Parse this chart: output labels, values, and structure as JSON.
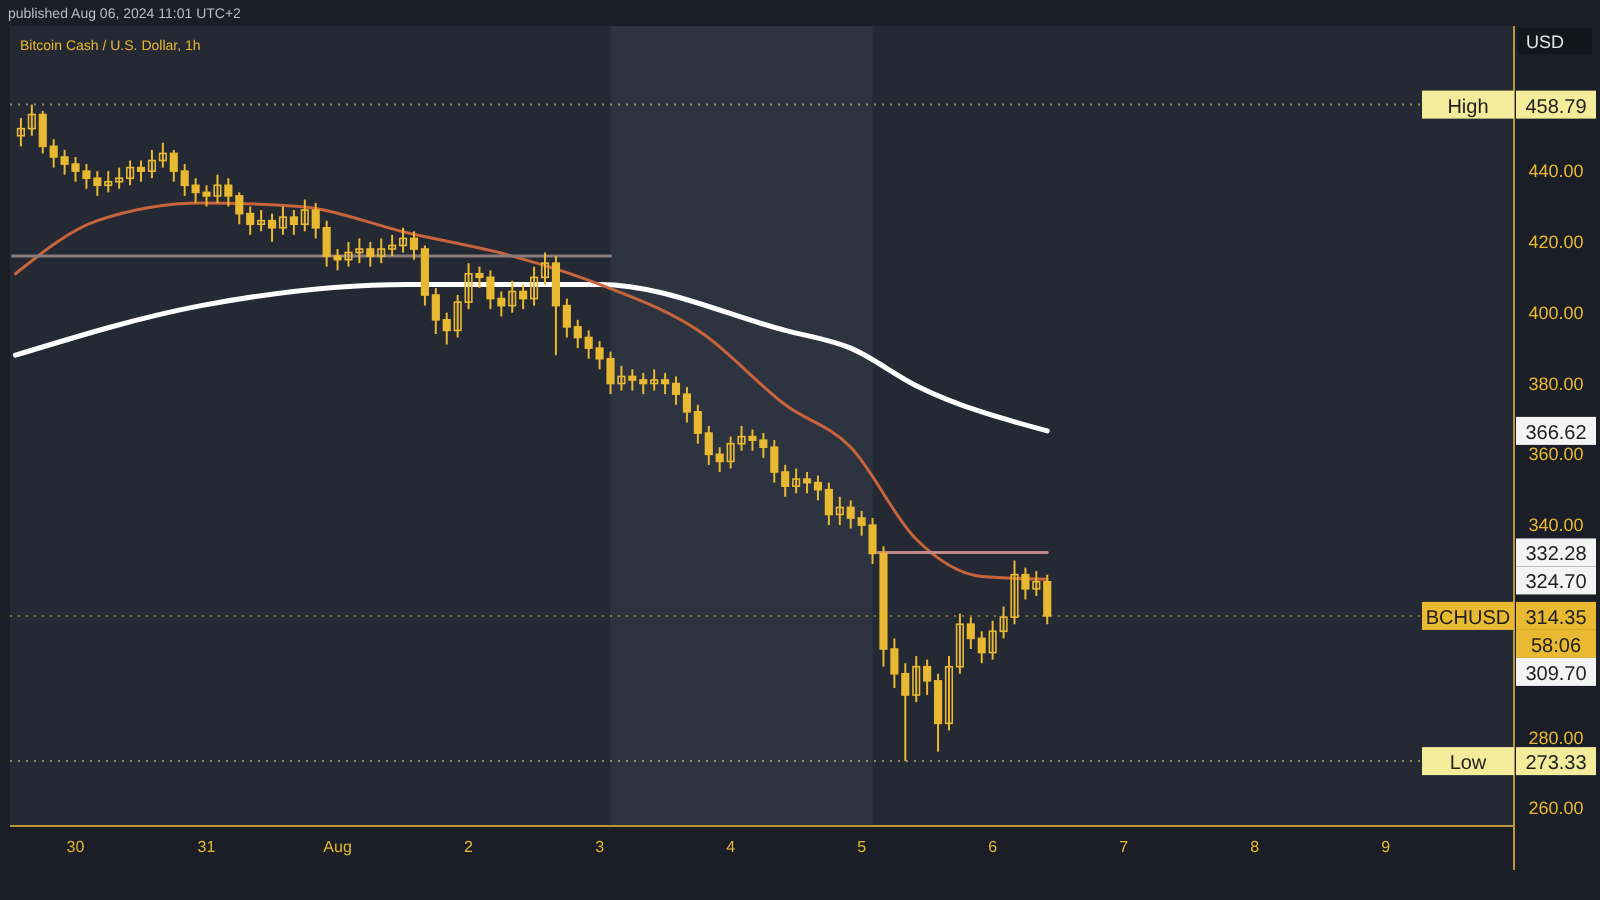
{
  "chart_data": {
    "type": "candlestick",
    "title": "Bitcoin Cash / U.S. Dollar, 1h",
    "subtitle": "published Aug 06, 2024 11:01 UTC+2",
    "ylabel": "USD",
    "color": "#e8b931",
    "x": [
      "2024-07-29T14:00",
      "2024-07-29T16:00",
      "2024-07-29T18:00",
      "2024-07-29T20:00",
      "2024-07-29T22:00",
      "2024-07-30T00:00",
      "2024-07-30T02:00",
      "2024-07-30T04:00",
      "2024-07-30T06:00",
      "2024-07-30T08:00",
      "2024-07-30T10:00",
      "2024-07-30T12:00",
      "2024-07-30T14:00",
      "2024-07-30T16:00",
      "2024-07-30T18:00",
      "2024-07-30T20:00",
      "2024-07-30T22:00",
      "2024-07-31T00:00",
      "2024-07-31T02:00",
      "2024-07-31T04:00",
      "2024-07-31T06:00",
      "2024-07-31T08:00",
      "2024-07-31T10:00",
      "2024-07-31T12:00",
      "2024-07-31T14:00",
      "2024-07-31T16:00",
      "2024-07-31T18:00",
      "2024-07-31T20:00",
      "2024-07-31T22:00",
      "2024-08-01T00:00",
      "2024-08-01T02:00",
      "2024-08-01T04:00",
      "2024-08-01T06:00",
      "2024-08-01T08:00",
      "2024-08-01T10:00",
      "2024-08-01T12:00",
      "2024-08-01T14:00",
      "2024-08-01T16:00",
      "2024-08-01T18:00",
      "2024-08-01T20:00",
      "2024-08-01T22:00",
      "2024-08-02T00:00",
      "2024-08-02T02:00",
      "2024-08-02T04:00",
      "2024-08-02T06:00",
      "2024-08-02T08:00",
      "2024-08-02T10:00",
      "2024-08-02T12:00",
      "2024-08-02T14:00",
      "2024-08-02T16:00",
      "2024-08-02T18:00",
      "2024-08-02T20:00",
      "2024-08-02T22:00",
      "2024-08-03T00:00",
      "2024-08-03T02:00",
      "2024-08-03T04:00",
      "2024-08-03T06:00",
      "2024-08-03T08:00",
      "2024-08-03T10:00",
      "2024-08-03T12:00",
      "2024-08-03T14:00",
      "2024-08-03T16:00",
      "2024-08-03T18:00",
      "2024-08-03T20:00",
      "2024-08-03T22:00",
      "2024-08-04T00:00",
      "2024-08-04T02:00",
      "2024-08-04T04:00",
      "2024-08-04T06:00",
      "2024-08-04T08:00",
      "2024-08-04T10:00",
      "2024-08-04T12:00",
      "2024-08-04T14:00",
      "2024-08-04T16:00",
      "2024-08-04T18:00",
      "2024-08-04T20:00",
      "2024-08-04T22:00",
      "2024-08-05T00:00",
      "2024-08-05T02:00",
      "2024-08-05T04:00",
      "2024-08-05T06:00",
      "2024-08-05T08:00",
      "2024-08-05T10:00",
      "2024-08-05T12:00",
      "2024-08-05T14:00",
      "2024-08-05T16:00",
      "2024-08-05T18:00",
      "2024-08-05T20:00",
      "2024-08-05T22:00",
      "2024-08-06T00:00",
      "2024-08-06T02:00",
      "2024-08-06T04:00",
      "2024-08-06T06:00",
      "2024-08-06T08:00",
      "2024-08-06T10:00"
    ],
    "ohlc": [
      [
        450,
        455,
        447,
        452
      ],
      [
        452,
        458.79,
        450,
        456
      ],
      [
        456,
        457,
        445,
        447
      ],
      [
        447,
        449,
        441,
        444
      ],
      [
        444,
        446,
        439,
        442
      ],
      [
        442,
        444,
        437,
        440
      ],
      [
        440,
        442,
        435,
        438
      ],
      [
        438,
        440,
        433,
        436
      ],
      [
        436,
        440,
        434,
        437
      ],
      [
        437,
        441,
        435,
        438
      ],
      [
        438,
        443,
        436,
        441
      ],
      [
        441,
        443,
        437,
        440
      ],
      [
        440,
        446,
        438,
        443
      ],
      [
        443,
        448,
        441,
        445
      ],
      [
        445,
        446,
        437,
        440
      ],
      [
        440,
        442,
        433,
        436
      ],
      [
        436,
        438,
        431,
        434
      ],
      [
        434,
        436,
        430,
        433
      ],
      [
        433,
        439,
        431,
        436
      ],
      [
        436,
        438,
        430,
        433
      ],
      [
        433,
        434,
        425,
        428
      ],
      [
        428,
        430,
        422,
        425
      ],
      [
        425,
        429,
        423,
        426
      ],
      [
        426,
        428,
        420,
        424
      ],
      [
        424,
        430,
        422,
        427
      ],
      [
        427,
        429,
        422,
        425
      ],
      [
        425,
        432,
        423,
        429
      ],
      [
        429,
        431,
        421,
        424
      ],
      [
        424,
        426,
        413,
        416
      ],
      [
        416,
        418,
        412,
        415
      ],
      [
        415,
        420,
        413,
        417
      ],
      [
        417,
        421,
        414,
        418
      ],
      [
        418,
        420,
        413,
        416
      ],
      [
        416,
        421,
        414,
        418
      ],
      [
        418,
        422,
        416,
        419
      ],
      [
        419,
        424,
        417,
        421
      ],
      [
        421,
        423,
        415,
        418
      ],
      [
        418,
        419,
        402,
        405
      ],
      [
        405,
        407,
        394,
        398
      ],
      [
        398,
        400,
        391,
        395
      ],
      [
        395,
        405,
        393,
        403
      ],
      [
        403,
        414,
        401,
        411
      ],
      [
        411,
        413,
        407,
        410
      ],
      [
        410,
        412,
        401,
        404
      ],
      [
        404,
        406,
        399,
        402
      ],
      [
        402,
        409,
        400,
        406
      ],
      [
        406,
        408,
        401,
        404
      ],
      [
        404,
        413,
        402,
        410
      ],
      [
        410,
        417,
        408,
        414
      ],
      [
        414,
        416,
        388,
        402
      ],
      [
        402,
        404,
        393,
        396
      ],
      [
        396,
        398,
        390,
        393
      ],
      [
        393,
        395,
        387,
        390
      ],
      [
        390,
        392,
        384,
        387
      ],
      [
        387,
        389,
        377,
        380
      ],
      [
        380,
        385,
        378,
        382
      ],
      [
        382,
        384,
        378,
        381
      ],
      [
        381,
        383,
        377,
        380
      ],
      [
        380,
        384,
        378,
        381
      ],
      [
        381,
        383,
        377,
        380
      ],
      [
        380,
        382,
        374,
        377
      ],
      [
        377,
        379,
        369,
        372
      ],
      [
        372,
        374,
        363,
        366
      ],
      [
        366,
        368,
        357,
        360
      ],
      [
        360,
        362,
        355,
        358
      ],
      [
        358,
        365,
        356,
        363
      ],
      [
        363,
        368,
        361,
        365
      ],
      [
        365,
        367,
        361,
        364
      ],
      [
        364,
        366,
        359,
        362
      ],
      [
        362,
        364,
        352,
        355
      ],
      [
        355,
        357,
        348,
        351
      ],
      [
        351,
        356,
        349,
        353
      ],
      [
        353,
        355,
        349,
        352
      ],
      [
        352,
        354,
        347,
        350
      ],
      [
        350,
        352,
        340,
        343
      ],
      [
        343,
        348,
        340,
        345
      ],
      [
        345,
        347,
        339,
        342
      ],
      [
        342,
        344,
        337,
        340
      ],
      [
        340,
        342,
        329,
        332
      ],
      [
        332,
        334,
        300,
        305
      ],
      [
        305,
        308,
        294,
        298
      ],
      [
        298,
        301,
        273.33,
        292
      ],
      [
        292,
        303,
        290,
        300
      ],
      [
        300,
        302,
        292,
        296
      ],
      [
        296,
        298,
        276,
        284
      ],
      [
        284,
        303,
        282,
        300
      ],
      [
        300,
        315,
        298,
        312
      ],
      [
        312,
        314,
        305,
        308
      ],
      [
        308,
        310,
        301,
        304
      ],
      [
        304,
        313,
        302,
        310
      ],
      [
        310,
        317,
        308,
        314
      ],
      [
        314,
        330,
        312,
        326
      ],
      [
        326,
        328,
        319,
        322
      ],
      [
        322,
        327,
        320,
        324
      ],
      [
        324,
        326,
        312,
        314.35
      ]
    ],
    "series": [
      {
        "type": "line",
        "color": "#ffffff",
        "x": [
          "2024-07-29T13:00",
          "2024-07-30T23:00",
          "2024-08-01T13:00",
          "2024-08-03T00:00",
          "2024-08-04T10:00",
          "2024-08-04T22:00",
          "2024-08-05T10:00",
          "2024-08-06T10:00"
        ],
        "values": [
          388,
          402,
          408,
          408,
          395,
          390,
          379.4,
          366.62
        ]
      },
      {
        "type": "line",
        "color": "#c8643c",
        "x": [
          "2024-07-29T13:00",
          "2024-07-30T04:00",
          "2024-07-30T23:00",
          "2024-07-31T17:00",
          "2024-08-01T13:00",
          "2024-08-02T08:00",
          "2024-08-03T00:00",
          "2024-08-03T19:00",
          "2024-08-04T10:00",
          "2024-08-04T22:00",
          "2024-08-05T10:00",
          "2024-08-05T22:00",
          "2024-08-06T10:00"
        ],
        "values": [
          411,
          426,
          431,
          430,
          422.5,
          416,
          408,
          394,
          374,
          362,
          336,
          325.5,
          324.7
        ]
      },
      {
        "type": "line",
        "color": "#8c7c7c",
        "x": [
          "2024-07-29T12:30",
          "2024-08-03T02:00"
        ],
        "values": [
          416,
          416
        ]
      },
      {
        "type": "line",
        "color": "#c08888",
        "x": [
          "2024-08-05T03:00",
          "2024-08-06T10:00"
        ],
        "values": [
          332.28,
          332.28
        ]
      }
    ],
    "xlim": [
      "2024-07-29T12:00",
      "2024-08-09T23:30"
    ],
    "xticks": [
      {
        "value": "2024-07-30",
        "label": "30"
      },
      {
        "value": "2024-07-31",
        "label": "31"
      },
      {
        "value": "2024-08-01",
        "label": "Aug"
      },
      {
        "value": "2024-08-02",
        "label": "2"
      },
      {
        "value": "2024-08-03",
        "label": "3"
      },
      {
        "value": "2024-08-04",
        "label": "4"
      },
      {
        "value": "2024-08-05",
        "label": "5"
      },
      {
        "value": "2024-08-06",
        "label": "6"
      },
      {
        "value": "2024-08-07",
        "label": "7"
      },
      {
        "value": "2024-08-08",
        "label": "8"
      },
      {
        "value": "2024-08-09",
        "label": "9"
      }
    ],
    "ylim": [
      255,
      481
    ],
    "yticks": [
      {
        "value": 260,
        "label": "260.00"
      },
      {
        "value": 280,
        "label": "280.00"
      },
      {
        "value": 340,
        "label": "340.00"
      },
      {
        "value": 360,
        "label": "360.00"
      },
      {
        "value": 380,
        "label": "380.00"
      },
      {
        "value": 400,
        "label": "400.00"
      },
      {
        "value": 420,
        "label": "420.00"
      },
      {
        "value": 440,
        "label": "440.00"
      }
    ],
    "bands": [
      {
        "axis": "x",
        "from": "2024-08-03T02:00",
        "to": "2024-08-05T02:00",
        "color": "#2e3340"
      }
    ],
    "ref_lines": [
      {
        "axis": "y",
        "value": 458.79,
        "label": "High",
        "color": "#f3ec9a",
        "line_style": "dotted"
      },
      {
        "axis": "y",
        "value": 273.33,
        "label": "Low",
        "color": "#f3ec9a",
        "line_style": "dotted"
      },
      {
        "axis": "y",
        "value": 314.35,
        "label": "BCHUSD",
        "color": "#e8b931",
        "line_style": "dotted"
      }
    ],
    "annotations": [
      {
        "text": "458.79",
        "y": 458.79
      },
      {
        "text": "273.33",
        "y": 273.33
      },
      {
        "text": "314.35",
        "y": 314.35
      },
      {
        "text": "366.62",
        "y": 366.62
      },
      {
        "text": "332.28",
        "y": 332.28
      },
      {
        "text": "324.70",
        "y": 324.7
      },
      "58:06",
      "309.70"
    ]
  }
}
